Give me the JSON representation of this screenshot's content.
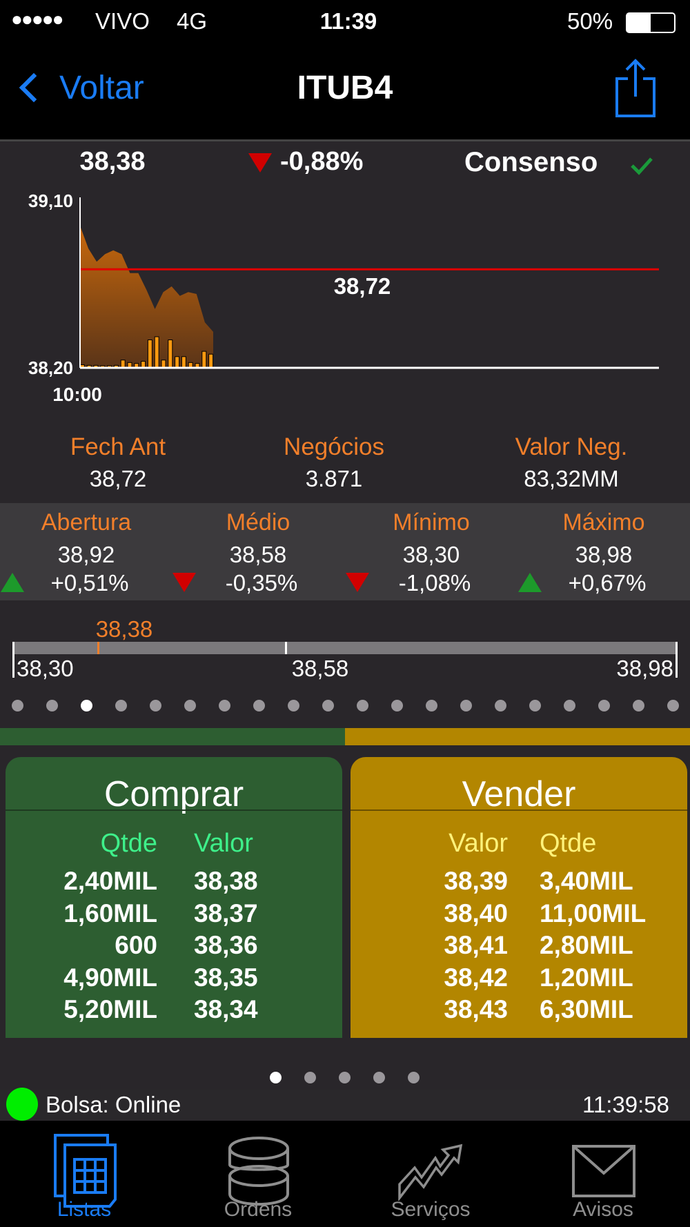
{
  "status_bar": {
    "signal": "●●●●●",
    "carrier": "VIVO",
    "network": "4G",
    "time": "11:39",
    "battery": "50%",
    "battery_level": 0.5
  },
  "nav": {
    "back_label": "Voltar",
    "title": "ITUB4",
    "share_icon": "share-icon"
  },
  "quote": {
    "price": "38,38",
    "change": "-0,88%",
    "direction": "down",
    "consensus_label": "Consenso"
  },
  "chart_data": {
    "type": "area",
    "y_ticks": [
      "39,10",
      "38,20"
    ],
    "ylim": [
      38.2,
      39.1
    ],
    "x_tick": "10:00",
    "reference_line": {
      "value": 38.72,
      "label": "38,72",
      "color": "#e00000"
    },
    "price": [
      38.95,
      38.83,
      38.76,
      38.8,
      38.82,
      38.8,
      38.7,
      38.7,
      38.61,
      38.51,
      38.6,
      38.63,
      38.58,
      38.6,
      38.59,
      38.44,
      38.39
    ],
    "volume_relative": [
      0.1,
      0.08,
      0.08,
      0.05,
      0.05,
      0.08,
      0.25,
      0.17,
      0.14,
      0.21,
      0.9,
      1.0,
      0.25,
      0.9,
      0.36,
      0.36,
      0.17,
      0.14,
      0.53,
      0.44
    ],
    "area_color": "#c0660f",
    "volume_color": "#ff9a10"
  },
  "stats": [
    {
      "label": "Fech Ant",
      "value": "38,72"
    },
    {
      "label": "Negócios",
      "value": "3.871"
    },
    {
      "label": "Valor Neg.",
      "value": "83,32MM"
    }
  ],
  "prices": [
    {
      "label": "Abertura",
      "value": "38,92",
      "change": "+0,51%",
      "direction": "up"
    },
    {
      "label": "Médio",
      "value": "38,58",
      "change": "-0,35%",
      "direction": "down"
    },
    {
      "label": "Mínimo",
      "value": "38,30",
      "change": "-1,08%",
      "direction": "down"
    },
    {
      "label": "Máximo",
      "value": "38,98",
      "change": "+0,67%",
      "direction": "up"
    }
  ],
  "range": {
    "current": "38,38",
    "min": "38,30",
    "mid": "38,58",
    "max": "38,98",
    "current_fraction": 0.12
  },
  "pager_top": {
    "count": 20,
    "active": 2
  },
  "buy_sell_ratio": 0.5,
  "buy": {
    "title": "Comprar",
    "headers": [
      "Qtde",
      "Valor"
    ],
    "rows": [
      [
        "2,40MIL",
        "38,38"
      ],
      [
        "1,60MIL",
        "38,37"
      ],
      [
        "600",
        "38,36"
      ],
      [
        "4,90MIL",
        "38,35"
      ],
      [
        "5,20MIL",
        "38,34"
      ]
    ],
    "color": "#2d5e31"
  },
  "sell": {
    "title": "Vender",
    "headers": [
      "Valor",
      "Qtde"
    ],
    "rows": [
      [
        "38,39",
        "3,40MIL"
      ],
      [
        "38,40",
        "11,00MIL"
      ],
      [
        "38,41",
        "2,80MIL"
      ],
      [
        "38,42",
        "1,20MIL"
      ],
      [
        "38,43",
        "6,30MIL"
      ]
    ],
    "color": "#b38600"
  },
  "pager_bottom": {
    "count": 5,
    "active": 0
  },
  "exchange": {
    "label": "Bolsa: Online",
    "time": "11:39:58",
    "status_color": "#00ee00"
  },
  "tabs": [
    {
      "label": "Listas",
      "icon": "grid-list-icon",
      "active": true
    },
    {
      "label": "Ordens",
      "icon": "database-stack-icon"
    },
    {
      "label": "Serviços",
      "icon": "trend-arrow-icon"
    },
    {
      "label": "Avisos",
      "icon": "envelope-icon"
    }
  ]
}
